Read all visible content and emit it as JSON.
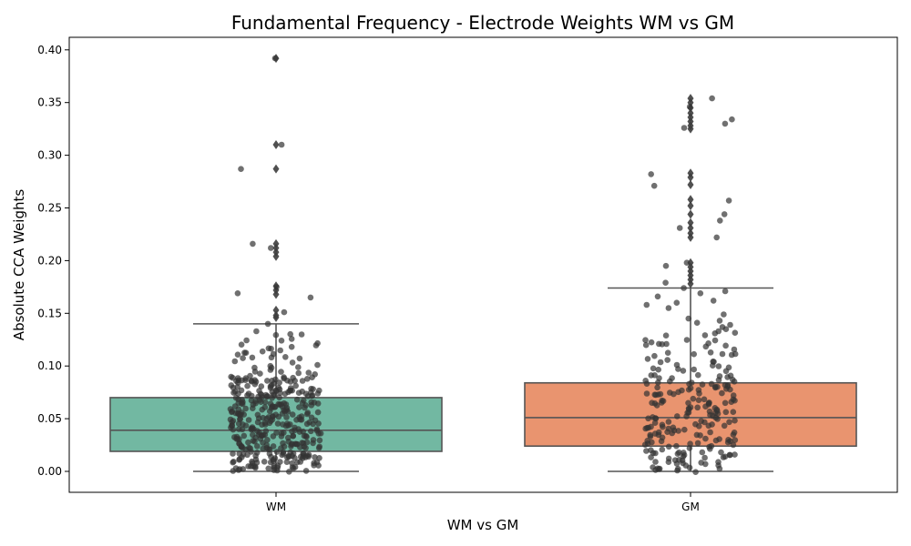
{
  "chart_data": {
    "type": "box",
    "title": "Fundamental Frequency - Electrode Weights WM vs GM",
    "xlabel": "WM vs GM",
    "ylabel": "Absolute CCA Weights",
    "categories": [
      "WM",
      "GM"
    ],
    "ylim": [
      -0.02,
      0.41
    ],
    "yticks": [
      0.0,
      0.05,
      0.1,
      0.15,
      0.2,
      0.25,
      0.3,
      0.35,
      0.4
    ],
    "ytick_labels": [
      "0.00",
      "0.05",
      "0.10",
      "0.15",
      "0.20",
      "0.25",
      "0.30",
      "0.35",
      "0.40"
    ],
    "grid": false,
    "series": [
      {
        "category": "WM",
        "color": "#72b8a2",
        "whisker_low": 0.0,
        "q1": 0.019,
        "median": 0.039,
        "q3": 0.07,
        "whisker_high": 0.14,
        "outliers": [
          0.392,
          0.31,
          0.287,
          0.216,
          0.212,
          0.208,
          0.204,
          0.176,
          0.172,
          0.168,
          0.153,
          0.148,
          0.146
        ],
        "strip_points": [
          0.392,
          0.31,
          0.287,
          0.216,
          0.212,
          0.175,
          0.169,
          0.165,
          0.151,
          0.14,
          0.133,
          0.13,
          0.128,
          0.124,
          0.122,
          0.12,
          0.117,
          0.115,
          0.114,
          0.113,
          0.11,
          0.108,
          0.106,
          0.104,
          0.1,
          0.098,
          0.097,
          0.096,
          0.094,
          0.092,
          0.09,
          0.089,
          0.088,
          0.087,
          0.086,
          0.085,
          0.084,
          0.083,
          0.082,
          0.08,
          0.079,
          0.078,
          0.077,
          0.076,
          0.075,
          0.074,
          0.073,
          0.072,
          0.071,
          0.07,
          0.069,
          0.068,
          0.067,
          0.066,
          0.065,
          0.064,
          0.063,
          0.062,
          0.061,
          0.06,
          0.059,
          0.058,
          0.057,
          0.056,
          0.055,
          0.054,
          0.053,
          0.052,
          0.051,
          0.05,
          0.049,
          0.048,
          0.047,
          0.046,
          0.045,
          0.044,
          0.043,
          0.042,
          0.041,
          0.04,
          0.039,
          0.038,
          0.037,
          0.036,
          0.035,
          0.034,
          0.033,
          0.032,
          0.031,
          0.03,
          0.029,
          0.028,
          0.027,
          0.026,
          0.025,
          0.024,
          0.023,
          0.022,
          0.021,
          0.02,
          0.019,
          0.018,
          0.017,
          0.016,
          0.015,
          0.014,
          0.013,
          0.012,
          0.011,
          0.01,
          0.009,
          0.008,
          0.007,
          0.006,
          0.005,
          0.004,
          0.003,
          0.002,
          0.001
        ]
      },
      {
        "category": "GM",
        "color": "#e9946f",
        "whisker_low": 0.0,
        "q1": 0.024,
        "median": 0.051,
        "q3": 0.084,
        "whisker_high": 0.174,
        "outliers": [
          0.354,
          0.35,
          0.345,
          0.34,
          0.336,
          0.332,
          0.328,
          0.325,
          0.283,
          0.279,
          0.272,
          0.258,
          0.252,
          0.244,
          0.236,
          0.231,
          0.226,
          0.222,
          0.198,
          0.194,
          0.19,
          0.186,
          0.182,
          0.178
        ],
        "strip_points": [
          0.354,
          0.346,
          0.334,
          0.33,
          0.326,
          0.282,
          0.271,
          0.257,
          0.244,
          0.238,
          0.231,
          0.222,
          0.198,
          0.195,
          0.179,
          0.174,
          0.171,
          0.169,
          0.166,
          0.162,
          0.16,
          0.158,
          0.155,
          0.149,
          0.145,
          0.143,
          0.141,
          0.139,
          0.137,
          0.135,
          0.133,
          0.131,
          0.129,
          0.127,
          0.125,
          0.123,
          0.121,
          0.119,
          0.117,
          0.115,
          0.113,
          0.111,
          0.109,
          0.107,
          0.105,
          0.103,
          0.101,
          0.099,
          0.097,
          0.095,
          0.093,
          0.091,
          0.089,
          0.087,
          0.085,
          0.083,
          0.081,
          0.079,
          0.077,
          0.075,
          0.073,
          0.071,
          0.069,
          0.067,
          0.065,
          0.063,
          0.061,
          0.059,
          0.057,
          0.055,
          0.053,
          0.051,
          0.049,
          0.047,
          0.045,
          0.043,
          0.041,
          0.039,
          0.037,
          0.035,
          0.033,
          0.031,
          0.029,
          0.027,
          0.025,
          0.023,
          0.021,
          0.019,
          0.017,
          0.015,
          0.013,
          0.011,
          0.009,
          0.007,
          0.005,
          0.003,
          0.001
        ]
      }
    ],
    "strip_color": "#333333",
    "box_edge_color": "#555555"
  }
}
